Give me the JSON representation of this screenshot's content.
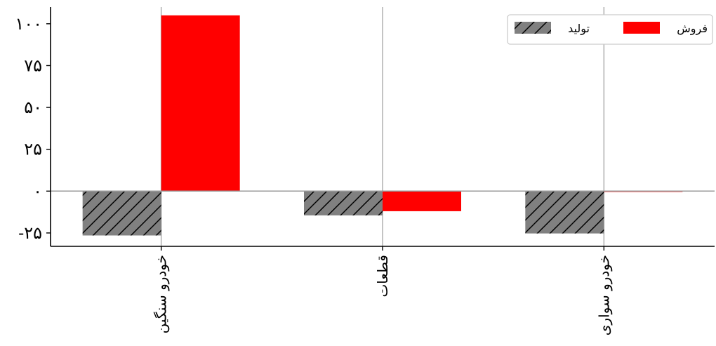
{
  "chart_data": {
    "type": "bar",
    "categories": [
      "خودرو سنگین",
      "قطعات",
      "خودرو سواری"
    ],
    "series": [
      {
        "name": "تولید",
        "values": [
          -26.5,
          -14.5,
          -25.3
        ],
        "color": "#808080",
        "hatch": "diagonal"
      },
      {
        "name": "فروش",
        "values": [
          105,
          -12,
          -0.5
        ],
        "color": "#ff0000",
        "hatch": "none"
      }
    ],
    "y_ticks": [
      -25,
      0,
      25,
      50,
      75,
      100
    ],
    "y_tick_labels": [
      "-۲۵",
      "۰",
      "۲۵",
      "۵۰",
      "۷۵",
      "۱۰۰"
    ],
    "ylim": [
      -33,
      110
    ],
    "grid": "vertical",
    "zero_line": true,
    "legend_position": "top-right",
    "title": "",
    "xlabel": "",
    "ylabel": ""
  }
}
